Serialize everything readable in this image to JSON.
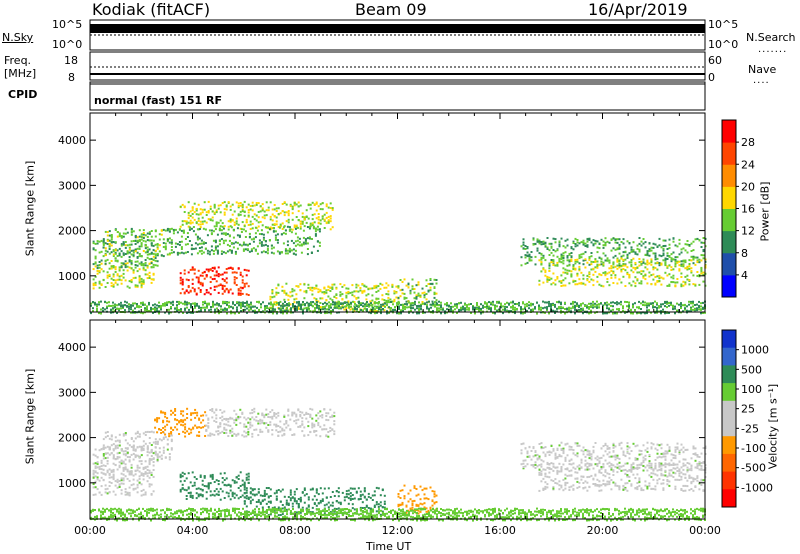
{
  "header": {
    "site": "Kodiak (fitACF)",
    "beam": "Beam 09",
    "date": "16/Apr/2019"
  },
  "noise_panel": {
    "left_label": "N.Sky",
    "right_label": "N.Search",
    "left_ticks": [
      "10^5",
      "10^0"
    ],
    "right_ticks": [
      "10^5",
      "10^0"
    ]
  },
  "freq_panel": {
    "left_label": "Freq.",
    "left_unit": "[MHz]",
    "left_ticks": [
      "18",
      "8"
    ],
    "right_ticks": [
      "60",
      "0"
    ],
    "right_label": "Nave"
  },
  "cpid_panel": {
    "label": "CPID",
    "mode": "normal (fast) 151 RF"
  },
  "x_axis": {
    "label": "Time UT",
    "ticks": [
      "00:00",
      "04:00",
      "08:00",
      "12:00",
      "16:00",
      "20:00",
      "00:00"
    ]
  },
  "colors": {
    "power_scale": [
      "#0000ff",
      "#1f4faa",
      "#2e8b57",
      "#66cc33",
      "#ffd700",
      "#ff8c00",
      "#ff4500",
      "#ff0000"
    ],
    "velocity_scale": [
      "#1133cc",
      "#3366cc",
      "#2e8b57",
      "#66cc33",
      "#c8c8c8",
      "#c8c8c8",
      "#ff9900",
      "#ff6600",
      "#ff3300",
      "#ff0000"
    ]
  },
  "chart_data": [
    {
      "type": "heatmap",
      "ylabel": "Slant Range [km]",
      "yticks": [
        1000,
        2000,
        3000,
        4000
      ],
      "ylim": [
        200,
        4600
      ],
      "xlim": [
        0,
        24
      ],
      "colorbar": {
        "title": "Power [dB]",
        "ticks": [
          4,
          8,
          12,
          16,
          20,
          24,
          28
        ]
      },
      "echo_bands": [
        {
          "t_start": 0.1,
          "t_end": 2.5,
          "range_km": 1050,
          "value": 16
        },
        {
          "t_start": 0.1,
          "t_end": 2.6,
          "range_km": 1500,
          "value": 12
        },
        {
          "t_start": 0.5,
          "t_end": 3.2,
          "range_km": 1750,
          "value": 14
        },
        {
          "t_start": 3.5,
          "t_end": 6.2,
          "range_km": 900,
          "value": 28
        },
        {
          "t_start": 3.5,
          "t_end": 9.5,
          "range_km": 2350,
          "value": 16
        },
        {
          "t_start": 3.0,
          "t_end": 9.0,
          "range_km": 1800,
          "value": 12
        },
        {
          "t_start": 7.0,
          "t_end": 12.0,
          "range_km": 550,
          "value": 16
        },
        {
          "t_start": 12.0,
          "t_end": 13.5,
          "range_km": 650,
          "value": 14
        },
        {
          "t_start": 16.8,
          "t_end": 24.0,
          "range_km": 1550,
          "value": 12
        },
        {
          "t_start": 17.5,
          "t_end": 24.0,
          "range_km": 1100,
          "value": 16
        },
        {
          "t_start": 0.0,
          "t_end": 24.0,
          "range_km": 320,
          "value": 12
        }
      ]
    },
    {
      "type": "heatmap",
      "ylabel": "Slant Range [km]",
      "yticks": [
        1000,
        2000,
        3000,
        4000
      ],
      "ylim": [
        200,
        4600
      ],
      "xlim": [
        0,
        24
      ],
      "colorbar": {
        "title": "Velocity [m s⁻¹]",
        "ticks": [
          1000,
          500,
          100,
          25,
          -25,
          -100,
          -500,
          -1000
        ]
      },
      "echo_bands": [
        {
          "t_start": 0.1,
          "t_end": 2.5,
          "range_km": 1050,
          "value": 0
        },
        {
          "t_start": 0.1,
          "t_end": 2.6,
          "range_km": 1500,
          "value": 0
        },
        {
          "t_start": 0.5,
          "t_end": 3.2,
          "range_km": 1850,
          "value": 0
        },
        {
          "t_start": 3.5,
          "t_end": 6.2,
          "range_km": 950,
          "value": 200
        },
        {
          "t_start": 2.5,
          "t_end": 4.5,
          "range_km": 2350,
          "value": -300
        },
        {
          "t_start": 4.5,
          "t_end": 9.5,
          "range_km": 2350,
          "value": 0
        },
        {
          "t_start": 6.0,
          "t_end": 11.5,
          "range_km": 600,
          "value": 150
        },
        {
          "t_start": 12.0,
          "t_end": 13.5,
          "range_km": 650,
          "value": -300
        },
        {
          "t_start": 16.8,
          "t_end": 24.0,
          "range_km": 1600,
          "value": 0
        },
        {
          "t_start": 17.5,
          "t_end": 24.0,
          "range_km": 1150,
          "value": 0
        },
        {
          "t_start": 0.0,
          "t_end": 24.0,
          "range_km": 320,
          "value": 60
        }
      ]
    }
  ]
}
